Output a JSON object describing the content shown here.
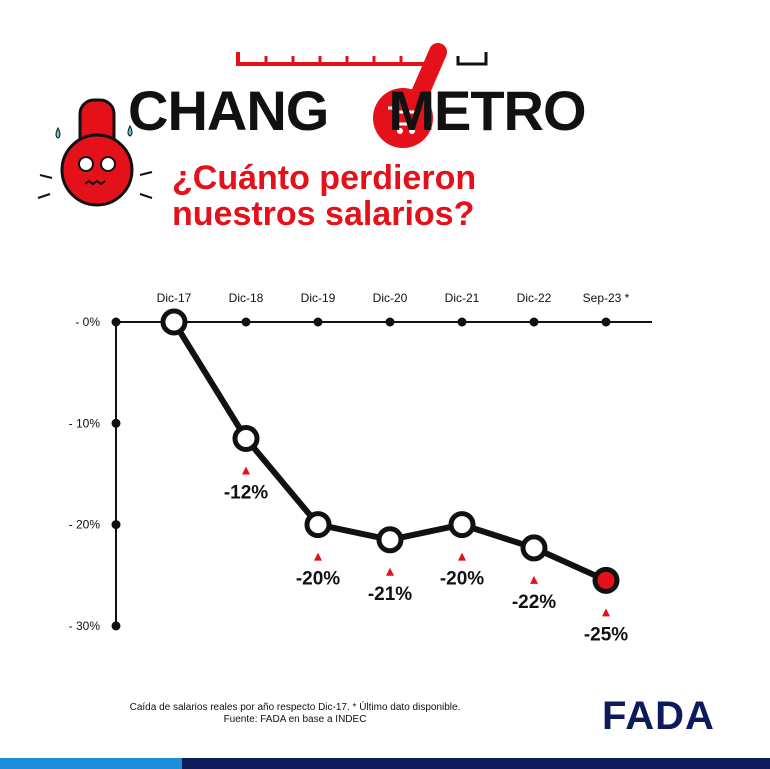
{
  "header": {
    "logo_text_left": "CHANG",
    "logo_text_right": "METRO",
    "subtitle_line1": "¿Cuánto perdieron",
    "subtitle_line2": "nuestros salarios?"
  },
  "chart_data": {
    "type": "line",
    "categories": [
      "Dic-17",
      "Dic-18",
      "Dic-19",
      "Dic-20",
      "Dic-21",
      "Dic-22",
      "Sep-23 *"
    ],
    "values": [
      0,
      -11.5,
      -20,
      -21.5,
      -20,
      -22.3,
      -25.5
    ],
    "data_labels": [
      "",
      "-12%",
      "-20%",
      "-21%",
      "-20%",
      "-22%",
      "-25%"
    ],
    "y_ticks": [
      {
        "value": 0,
        "label": "- 0%"
      },
      {
        "value": -10,
        "label": "- 10%"
      },
      {
        "value": -20,
        "label": "- 20%"
      },
      {
        "value": -30,
        "label": "- 30%"
      }
    ],
    "ylim": [
      -30,
      0
    ],
    "grid": false,
    "colors": {
      "line": "#111111",
      "highlight": "#e4101a",
      "marker": "#e4101a"
    }
  },
  "footer": {
    "note": "Caída de salarios reales por año respecto Dic-17. * Último dato disponible.",
    "source": "Fuente: FADA en base a INDEC",
    "brand": "FADA"
  }
}
